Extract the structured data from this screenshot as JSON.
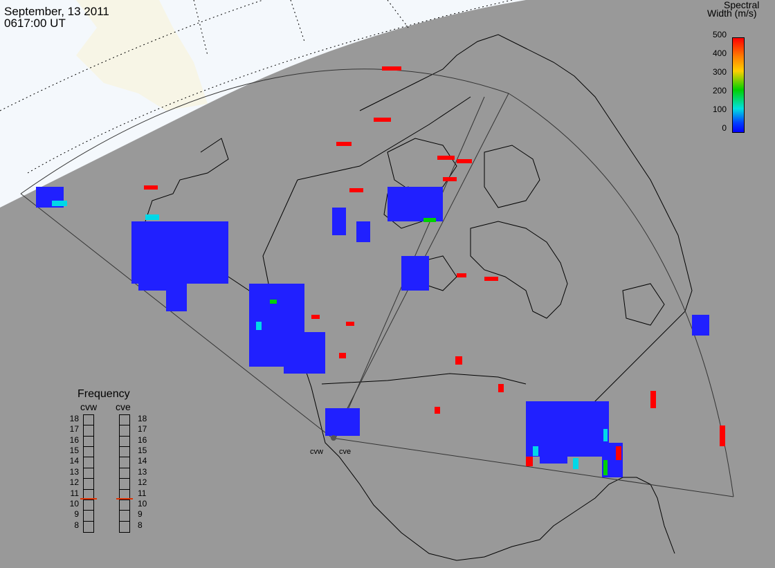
{
  "header": {
    "date": "September, 13 2011",
    "time": "0617:00 UT"
  },
  "colorbar": {
    "title_line1": "Spectral",
    "title_line2": "Width (m/s)",
    "ticks": [
      "500",
      "400",
      "300",
      "200",
      "100",
      "0"
    ]
  },
  "frequency_panel": {
    "title": "Frequency",
    "left_label": "cvw",
    "right_label": "cve",
    "scale": [
      "18",
      "17",
      "16",
      "15",
      "14",
      "13",
      "12",
      "11",
      "10",
      "9",
      "8"
    ],
    "cvw_frequency_mhz": 10.6,
    "cve_frequency_mhz": 10.6
  },
  "radars": [
    {
      "name": "cvw"
    },
    {
      "name": "cve"
    }
  ],
  "colors": {
    "background": "#999999",
    "daylight": "#f4f8fc",
    "land_outline": "#000000",
    "low_width": "#2020ff",
    "high_width": "#ff0000"
  }
}
